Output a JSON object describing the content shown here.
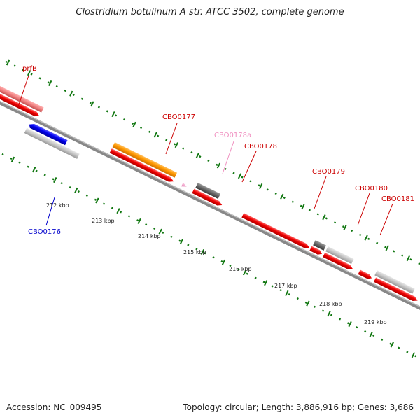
{
  "title": "Clostridium botulinum A str. ATCC 3502, complete genome",
  "footer": {
    "accession": "Accession: NC_009495",
    "stats": "Topology: circular; Length: 3,886,916 bp; Genes: 3,686"
  },
  "colors": {
    "cds": "#ee0000",
    "highlight": "#ff9900",
    "gray_gene": "#c0c0c0",
    "dark_gene": "#666666",
    "pink_gene": "#f0a0c8",
    "blue_gene": "#0000ee",
    "backbone": "#888888",
    "ticks": "#117711"
  },
  "ticks": [
    "212 kbp",
    "213 kbp",
    "214 kbp",
    "215 kbp",
    "216 kbp",
    "217 kbp",
    "218 kbp",
    "219 kbp"
  ],
  "gene_labels": [
    {
      "text": "prfB",
      "color": "#cc0000"
    },
    {
      "text": "CBO0177",
      "color": "#cc0000"
    },
    {
      "text": "CBO0178a",
      "color": "#f090c0"
    },
    {
      "text": "CBO0178",
      "color": "#cc0000"
    },
    {
      "text": "CBO0179",
      "color": "#cc0000"
    },
    {
      "text": "CBO0180",
      "color": "#cc0000"
    },
    {
      "text": "CBO0181",
      "color": "#cc0000"
    },
    {
      "text": "CBO0176",
      "color": "#0000cc"
    }
  ]
}
